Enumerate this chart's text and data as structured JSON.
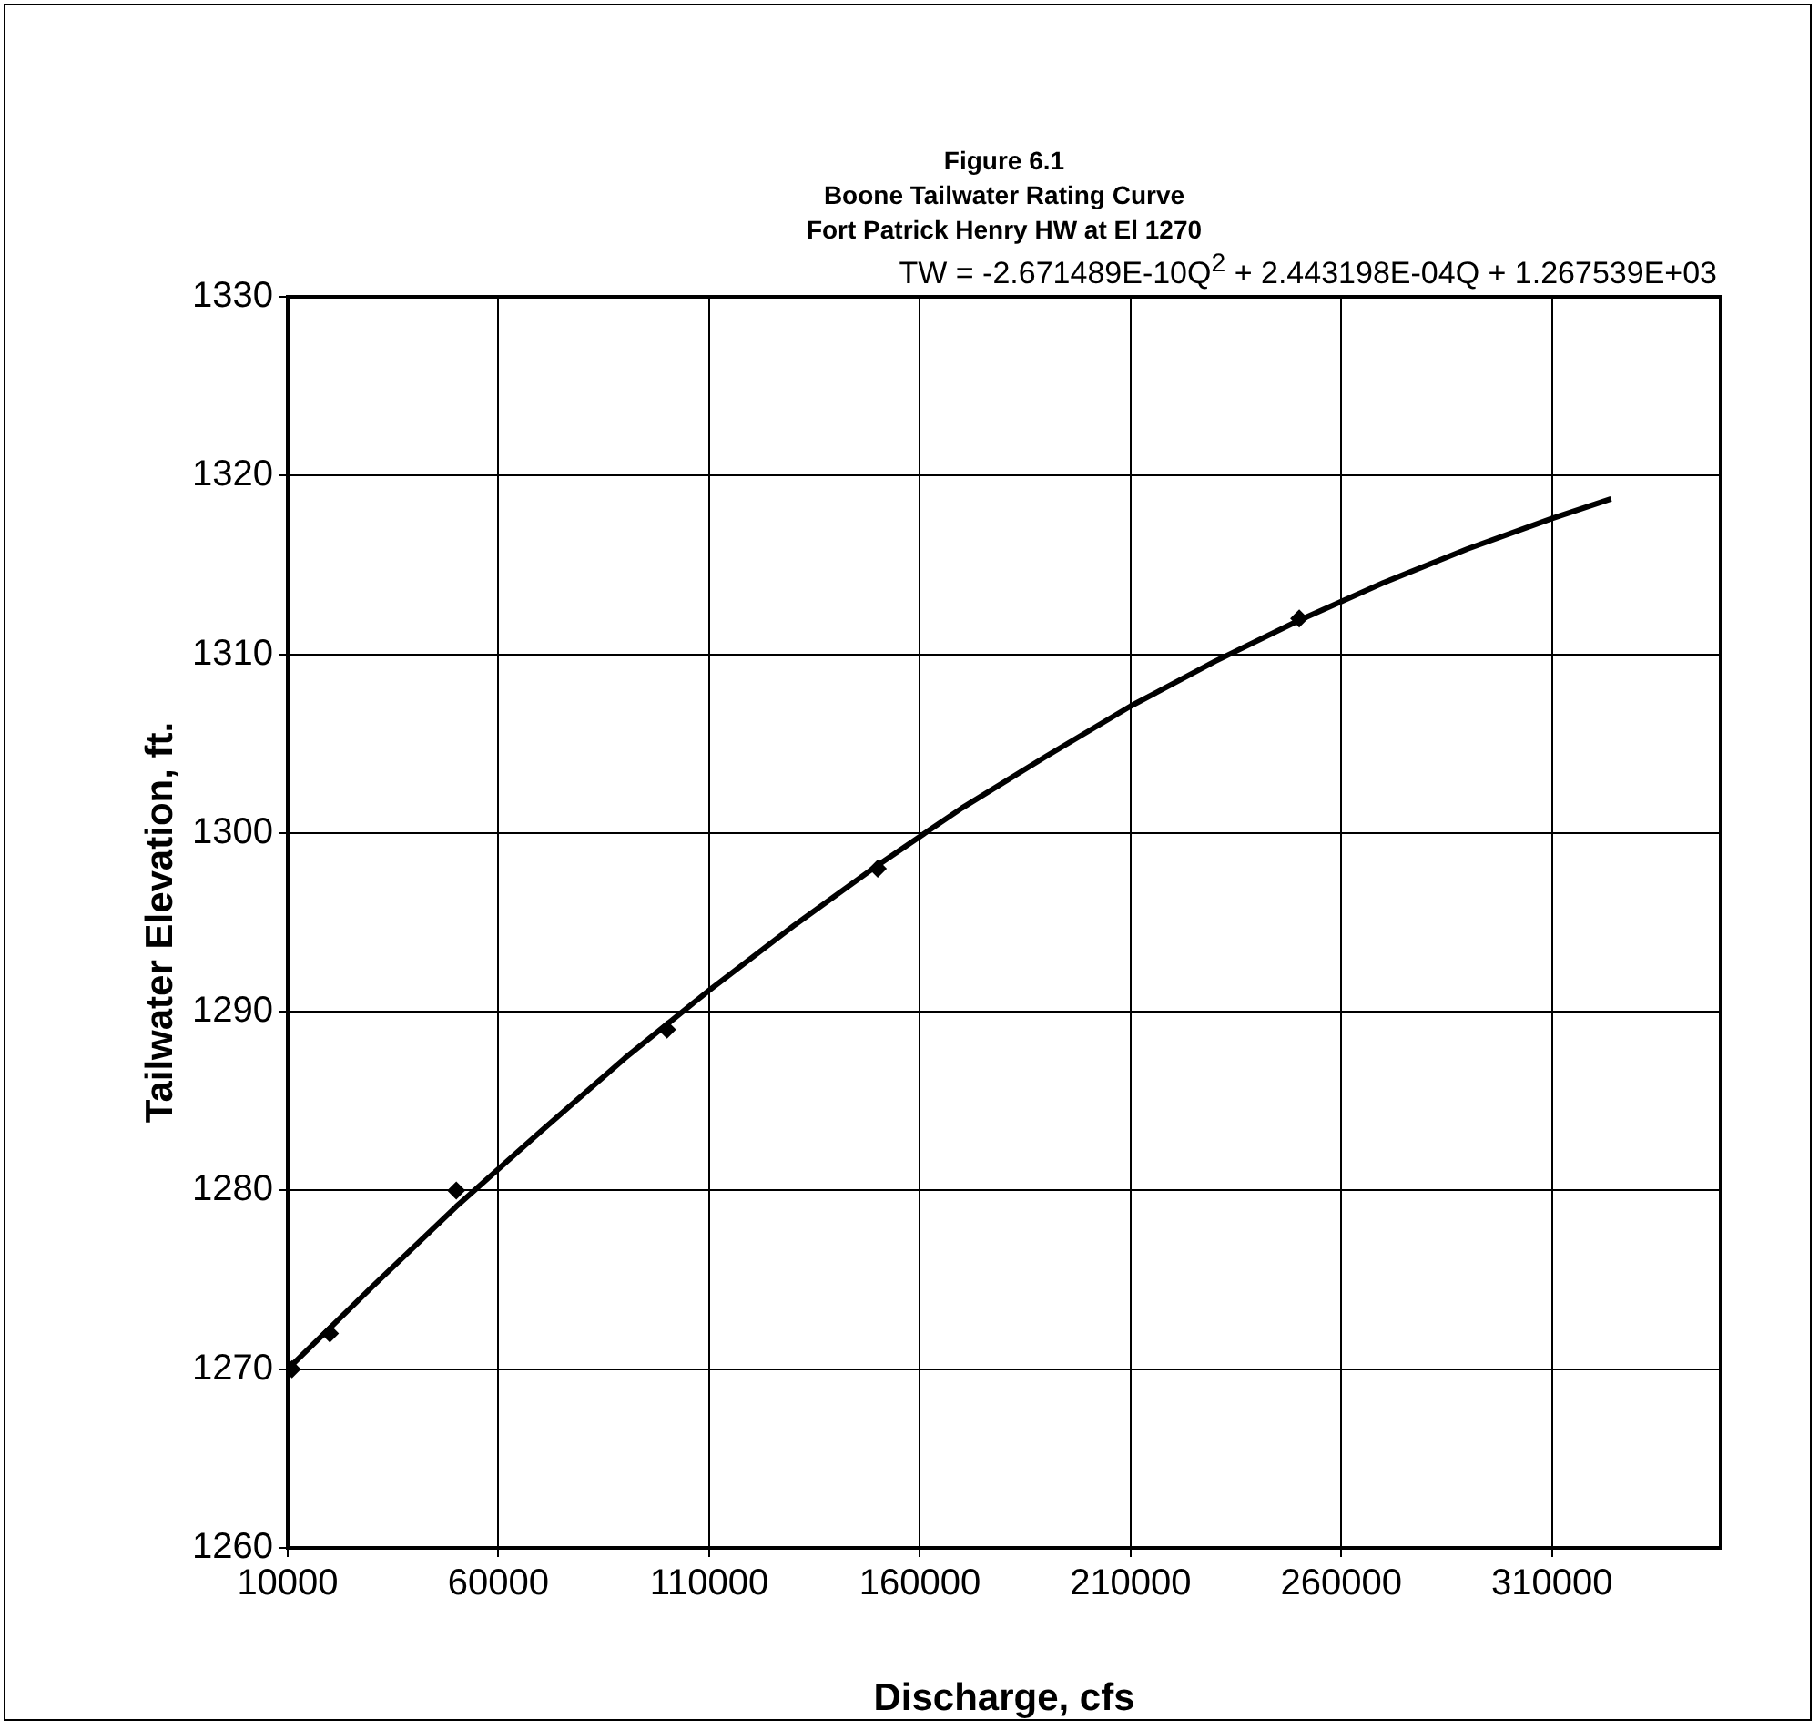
{
  "chart_data": {
    "type": "scatter",
    "title": "Figure 6.1",
    "subtitle": "Boone Tailwater Rating Curve\nFort Patrick Henry HW at El 1270",
    "xlabel": "Discharge, cfs",
    "ylabel": "Tailwater Elevation, ft.",
    "annotations": [
      "TW = -2.671489E-10Q$^{2}$ + 2.443198E-04Q + 1.267539E+03"
    ],
    "series": [
      {
        "type": "scatter",
        "color": "#000000",
        "marker": "diamond",
        "x": [
          11000,
          20000,
          50000,
          100000,
          150000,
          250000
        ],
        "values": [
          1270,
          1272,
          1280,
          1289,
          1298,
          1312
        ]
      },
      {
        "type": "line",
        "color": "#000000",
        "marker": "none",
        "line_style": "solid",
        "x": [
          10000,
          30000,
          50000,
          70000,
          90000,
          110000,
          130000,
          150000,
          170000,
          190000,
          210000,
          230000,
          250000,
          270000,
          290000,
          310000,
          324000
        ],
        "values": [
          1270.0,
          1274.6,
          1279.1,
          1283.3,
          1287.4,
          1291.2,
          1294.8,
          1298.2,
          1301.4,
          1304.3,
          1307.1,
          1309.6,
          1311.9,
          1314.0,
          1315.9,
          1317.6,
          1318.7
        ]
      }
    ],
    "xlim": [
      10000,
      350000
    ],
    "xticks": [
      10000,
      60000,
      110000,
      160000,
      210000,
      260000,
      310000
    ],
    "ylim": [
      1260,
      1330
    ],
    "yticks": [
      1260,
      1270,
      1280,
      1290,
      1300,
      1310,
      1320,
      1330
    ],
    "grid": true
  }
}
